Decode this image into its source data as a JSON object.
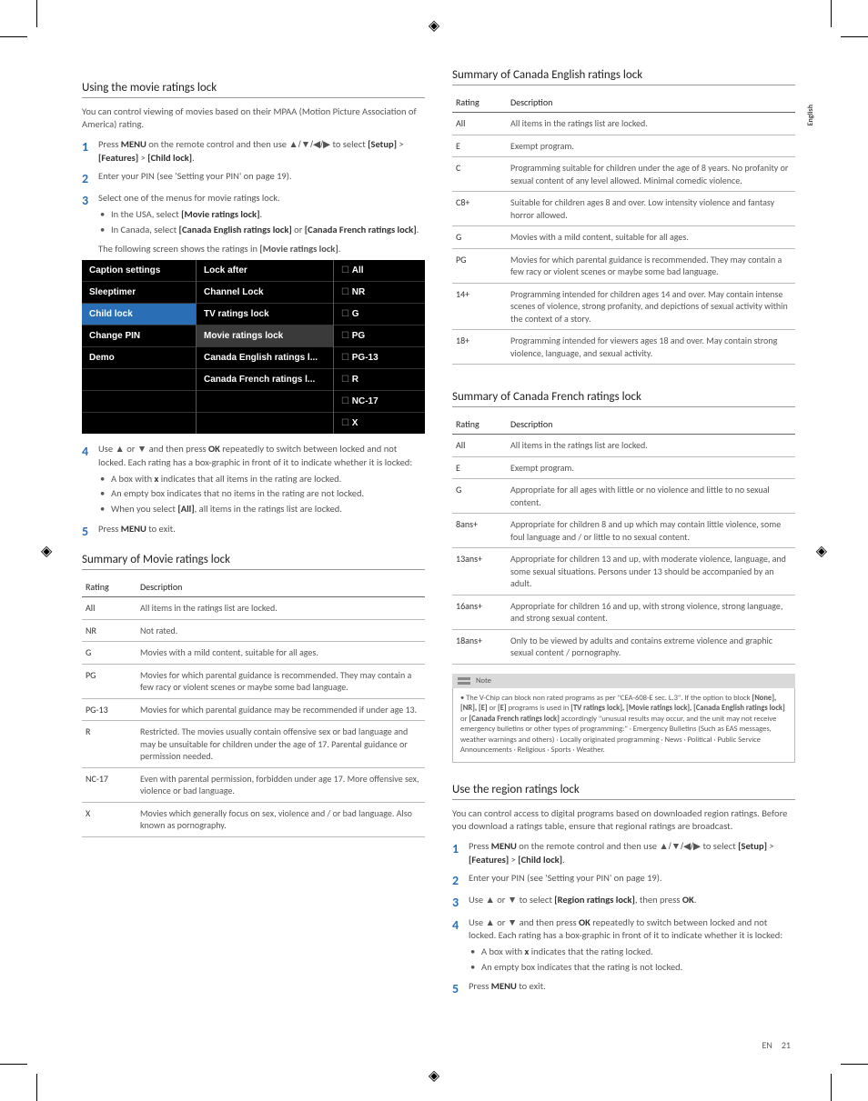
{
  "side_tab": "English",
  "left": {
    "sec1_title": "Using the movie ratings lock",
    "sec1_intro": "You can control viewing of movies based on their MPAA (Motion Picture Association of America) rating.",
    "sec1_step1_a": "Press ",
    "sec1_step1_b": "MENU",
    "sec1_step1_c": " on the remote control and then use ",
    "sec1_step1_d": "▲/▼/◀/▶",
    "sec1_step1_e": " to select ",
    "sec1_step1_f": "[Setup]",
    "sec1_step1_g": " > ",
    "sec1_step1_h": "[Features]",
    "sec1_step1_i": " > ",
    "sec1_step1_j": "[Child lock]",
    "sec1_step2": "Enter your PIN (see 'Setting your PIN' on page 19).",
    "sec1_step3": "Select one of the menus for movie ratings lock.",
    "sec1_step3_b1a": "In the USA, select ",
    "sec1_step3_b1b": "[Movie ratings lock]",
    "sec1_step3_b2a": "In Canada, select ",
    "sec1_step3_b2b": "[Canada English ratings lock]",
    "sec1_step3_b2c": " or ",
    "sec1_step3_b2d": "[Canada French ratings lock]",
    "sec1_after3a": "The following screen shows the ratings in ",
    "sec1_after3b": "[Movie ratings lock]",
    "menu": {
      "c1": [
        "Caption settings",
        "Sleeptimer",
        "Child lock",
        "Change PIN",
        "Demo"
      ],
      "c2": [
        "Lock after",
        "Channel Lock",
        "TV ratings lock",
        "Movie ratings lock",
        "Canada English ratings l...",
        "Canada French ratings l..."
      ],
      "c3": [
        "All",
        "NR",
        "G",
        "PG",
        "PG-13",
        "R",
        "NC-17",
        "X"
      ]
    },
    "sec1_step4_a": "Use ",
    "sec1_step4_b": "▲",
    "sec1_step4_c": " or ",
    "sec1_step4_d": "▼",
    "sec1_step4_e": " and then press ",
    "sec1_step4_f": "OK",
    "sec1_step4_g": " repeatedly to switch between locked and not locked. Each rating has a box-graphic in front of it to indicate whether it is locked:",
    "sec1_step4_b1a": "A box with ",
    "sec1_step4_b1b": "x",
    "sec1_step4_b1c": " indicates that all items in the rating are locked.",
    "sec1_step4_b2": "An empty box indicates that no items in the rating are not locked.",
    "sec1_step4_b3a": "When you select ",
    "sec1_step4_b3b": "[All]",
    "sec1_step4_b3c": ", all items in the ratings list are locked.",
    "sec1_step5_a": "Press ",
    "sec1_step5_b": "MENU",
    "sec1_step5_c": " to exit.",
    "sec2_title": "Summary of Movie ratings lock",
    "movie_hdr": [
      "Rating",
      "Description"
    ],
    "movie_rows": [
      [
        "All",
        "All items in the ratings list are locked."
      ],
      [
        "NR",
        "Not rated."
      ],
      [
        "G",
        "Movies with a mild content, suitable for all ages."
      ],
      [
        "PG",
        "Movies for which parental guidance is recommended. They may contain a few racy or violent scenes or maybe some bad language."
      ],
      [
        "PG-13",
        "Movies for which parental guidance may be recommended if under age 13."
      ],
      [
        "R",
        "Restricted. The movies usually contain offensive sex or bad language and may be unsuitable for children under the age of 17. Parental guidance or permission needed."
      ],
      [
        "NC-17",
        "Even with parental permission, forbidden under age 17. More offensive sex, violence or bad language."
      ],
      [
        "X",
        "Movies which generally focus on sex, violence and / or bad language. Also known as pornography."
      ]
    ]
  },
  "right": {
    "sec3_title": "Summary of Canada English ratings lock",
    "en_hdr": [
      "Rating",
      "Description"
    ],
    "en_rows": [
      [
        "All",
        "All items in the ratings list are locked."
      ],
      [
        "E",
        "Exempt program."
      ],
      [
        "C",
        "Programming suitable for children under the age of 8 years. No profanity or sexual content of any level allowed. Minimal comedic violence."
      ],
      [
        "C8+",
        "Suitable for children ages 8 and over. Low intensity violence and fantasy horror allowed."
      ],
      [
        "G",
        "Movies with a mild content, suitable for all ages."
      ],
      [
        "PG",
        "Movies for which parental guidance is recommended. They may contain a few racy or violent scenes or maybe some bad language."
      ],
      [
        "14+",
        "Programming intended for children ages 14 and over. May contain intense scenes of violence, strong profanity, and depictions of sexual activity within the context of a story."
      ],
      [
        "18+",
        "Programming intended for viewers ages 18 and over. May contain strong violence, language, and sexual activity."
      ]
    ],
    "sec4_title": "Summary of Canada French ratings lock",
    "fr_hdr": [
      "Rating",
      "Description"
    ],
    "fr_rows": [
      [
        "All",
        "All items in the ratings list are locked."
      ],
      [
        "E",
        "Exempt program."
      ],
      [
        "G",
        "Appropriate for all ages with little or no violence and little to no sexual content."
      ],
      [
        "8ans+",
        "Appropriate for children 8 and up which may contain little violence, some foul language and / or little to no sexual content."
      ],
      [
        "13ans+",
        "Appropriate for children 13 and up, with moderate violence, language, and some sexual situations. Persons under 13 should be accompanied by an adult."
      ],
      [
        "16ans+",
        "Appropriate for children 16 and up, with strong violence, strong language, and strong sexual content."
      ],
      [
        "18ans+",
        "Only to be viewed by adults and contains extreme violence and graphic sexual content / pornography."
      ]
    ],
    "note_label": "Note",
    "note_body_a": "The V-Chip can block non rated programs as per \"CEA-608-E sec. L.3\". If the option to block ",
    "note_body_b": "[None], [NR], [E]",
    "note_body_c": " or ",
    "note_body_d": "[E]",
    "note_body_e": " programs is used in ",
    "note_body_f": "[TV ratings lock], [Movie ratings lock], [Canada English ratings lock]",
    "note_body_g": " or ",
    "note_body_h": "[Canada French ratings lock]",
    "note_body_i": " accordingly \"unusual results may occur, and the unit may not receive emergency bulletins or other types of programming:\" · Emergency Bulletins (Such as EAS messages, weather warnings and others) · Locally originated programming · News · Political · Public Service Announcements · Religious · Sports · Weather.",
    "sec5_title": "Use the region ratings lock",
    "sec5_intro": "You can control access to digital programs based on downloaded region ratings. Before you download a ratings table, ensure that regional ratings are broadcast.",
    "sec5_step1_a": "Press ",
    "sec5_step1_b": "MENU",
    "sec5_step1_c": " on the remote control and then use ",
    "sec5_step1_d": "▲/▼/◀/▶",
    "sec5_step1_e": " to select ",
    "sec5_step1_f": "[Setup]",
    "sec5_step1_g": " > ",
    "sec5_step1_h": "[Features]",
    "sec5_step1_i": " > ",
    "sec5_step1_j": "[Child lock]",
    "sec5_step2": "Enter your PIN (see 'Setting your PIN' on page 19).",
    "sec5_step3_a": "Use ",
    "sec5_step3_b": "▲",
    "sec5_step3_c": " or ",
    "sec5_step3_d": "▼",
    "sec5_step3_e": " to select ",
    "sec5_step3_f": "[Region ratings lock]",
    "sec5_step3_g": ", then press ",
    "sec5_step3_h": "OK",
    "sec5_step4_a": "Use ",
    "sec5_step4_b": "▲",
    "sec5_step4_c": " or ",
    "sec5_step4_d": "▼",
    "sec5_step4_e": " and then press ",
    "sec5_step4_f": "OK",
    "sec5_step4_g": " repeatedly to switch between locked and not locked. Each rating has a box-graphic in front of it to indicate whether it is locked:",
    "sec5_step4_b1a": "A box with ",
    "sec5_step4_b1b": "x",
    "sec5_step4_b1c": " indicates that the rating locked.",
    "sec5_step4_b2": "An empty box indicates that the rating is not locked.",
    "sec5_step5_a": "Press ",
    "sec5_step5_b": "MENU",
    "sec5_step5_c": " to exit."
  },
  "footer": {
    "lang": "EN",
    "page": "21"
  }
}
